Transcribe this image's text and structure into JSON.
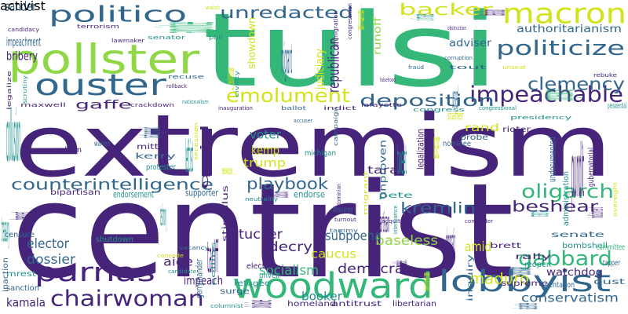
{
  "palette": {
    "p": "#46247a",
    "b": "#31668d",
    "t": "#21918c",
    "g": "#35b779",
    "l": "#8fd744",
    "y": "#d2e21b"
  },
  "words": [
    {
      "text": "extremism",
      "color": "p",
      "dir": "h"
    },
    {
      "text": "centrist",
      "color": "p",
      "dir": "h"
    },
    {
      "text": "tulsi",
      "color": "g",
      "dir": "h"
    },
    {
      "text": "pollster",
      "color": "l",
      "dir": "h"
    },
    {
      "text": "macron",
      "color": "y",
      "dir": "h"
    },
    {
      "text": "politico",
      "color": "b",
      "dir": "h"
    },
    {
      "text": "ouster",
      "color": "b",
      "dir": "h"
    },
    {
      "text": "woodward",
      "color": "g",
      "dir": "h"
    },
    {
      "text": "parnas",
      "color": "p",
      "dir": "h"
    },
    {
      "text": "lobbyist",
      "color": "b",
      "dir": "h"
    },
    {
      "text": "chairwoman",
      "color": "p",
      "dir": "h"
    },
    {
      "text": "impeachable",
      "color": "p",
      "dir": "h"
    },
    {
      "text": "politicize",
      "color": "b",
      "dir": "h"
    },
    {
      "text": "emolument",
      "color": "y",
      "dir": "h"
    },
    {
      "text": "deposition",
      "color": "b",
      "dir": "h"
    },
    {
      "text": "unredacted",
      "color": "b",
      "dir": "h"
    },
    {
      "text": "backer",
      "color": "y",
      "dir": "h"
    },
    {
      "text": "clemency",
      "color": "b",
      "dir": "h"
    },
    {
      "text": "counterintelligence",
      "color": "b",
      "dir": "h"
    },
    {
      "text": "oligarch",
      "color": "g",
      "dir": "h"
    },
    {
      "text": "gabbard",
      "color": "g",
      "dir": "h"
    },
    {
      "text": "beshear",
      "color": "p",
      "dir": "h"
    },
    {
      "text": "kremlin",
      "color": "b",
      "dir": "h"
    },
    {
      "text": "playbook",
      "color": "b",
      "dir": "h"
    },
    {
      "text": "maduro",
      "color": "y",
      "dir": "h"
    },
    {
      "text": "conservatism",
      "color": "b",
      "dir": "h"
    },
    {
      "text": "socialism",
      "color": "g",
      "dir": "h"
    },
    {
      "text": "democrat",
      "color": "p",
      "dir": "h"
    },
    {
      "text": "caucus",
      "color": "y",
      "dir": "h"
    },
    {
      "text": "booker",
      "color": "t",
      "dir": "h"
    },
    {
      "text": "baseless",
      "color": "l",
      "dir": "h"
    },
    {
      "text": "subpoena",
      "color": "b",
      "dir": "h"
    },
    {
      "text": "decry",
      "color": "p",
      "dir": "h"
    },
    {
      "text": "tucker",
      "color": "p",
      "dir": "h"
    },
    {
      "text": "elector",
      "color": "b",
      "dir": "h"
    },
    {
      "text": "dossier",
      "color": "b",
      "dir": "h"
    },
    {
      "text": "kamala",
      "color": "p",
      "dir": "h"
    },
    {
      "text": "impeach",
      "color": "p",
      "dir": "h"
    },
    {
      "text": "aide",
      "color": "p",
      "dir": "h"
    },
    {
      "text": "amid",
      "color": "y",
      "dir": "h"
    },
    {
      "text": "watchdog",
      "color": "p",
      "dir": "h"
    },
    {
      "text": "authoritarianism",
      "color": "b",
      "dir": "h"
    },
    {
      "text": "adviser",
      "color": "b",
      "dir": "h"
    },
    {
      "text": "republican",
      "color": "p",
      "dir": "v"
    },
    {
      "text": "judiciary",
      "color": "y",
      "dir": "v"
    },
    {
      "text": "runoff",
      "color": "l",
      "dir": "v"
    },
    {
      "text": "migrant",
      "color": "b",
      "dir": "h"
    },
    {
      "text": "showdown",
      "color": "y",
      "dir": "v"
    },
    {
      "text": "appointee",
      "color": "g",
      "dir": "v"
    },
    {
      "text": "impeachment",
      "color": "b",
      "dir": "h"
    },
    {
      "text": "sander",
      "color": "b",
      "dir": "h"
    },
    {
      "text": "bribery",
      "color": "p",
      "dir": "h"
    },
    {
      "text": "gaffe",
      "color": "p",
      "dir": "h"
    },
    {
      "text": "collusion",
      "color": "t",
      "dir": "h"
    },
    {
      "text": "battleground",
      "color": "b",
      "dir": "v"
    },
    {
      "text": "voter",
      "color": "t",
      "dir": "h"
    },
    {
      "text": "kemp",
      "color": "y",
      "dir": "h"
    },
    {
      "text": "trump",
      "color": "y",
      "dir": "h"
    },
    {
      "text": "staffer",
      "color": "y",
      "dir": "h"
    },
    {
      "text": "rand",
      "color": "y",
      "dir": "h"
    },
    {
      "text": "pundit",
      "color": "p",
      "dir": "h"
    },
    {
      "text": "indictment",
      "color": "p",
      "dir": "v"
    },
    {
      "text": "tara",
      "color": "p",
      "dir": "h"
    },
    {
      "text": "partisan",
      "color": "p",
      "dir": "h"
    },
    {
      "text": "quid",
      "color": "p",
      "dir": "v"
    },
    {
      "text": "congresswoman",
      "color": "g",
      "dir": "v"
    },
    {
      "text": "bipartisan",
      "color": "p",
      "dir": "h"
    },
    {
      "text": "endorsement",
      "color": "t",
      "dir": "h"
    },
    {
      "text": "supporter",
      "color": "b",
      "dir": "h"
    },
    {
      "text": "endorse",
      "color": "t",
      "dir": "h"
    },
    {
      "text": "insurer",
      "color": "b",
      "dir": "h"
    },
    {
      "text": "pete",
      "color": "t",
      "dir": "h"
    },
    {
      "text": "shutdown",
      "color": "t",
      "dir": "h"
    },
    {
      "text": "refugee",
      "color": "t",
      "dir": "h"
    },
    {
      "text": "election",
      "color": "p",
      "dir": "h"
    },
    {
      "text": "unveil",
      "color": "t",
      "dir": "h"
    },
    {
      "text": "surge",
      "color": "b",
      "dir": "h"
    },
    {
      "text": "tariff",
      "color": "p",
      "dir": "h"
    },
    {
      "text": "gerrymander",
      "color": "b",
      "dir": "v"
    },
    {
      "text": "divisive",
      "color": "p",
      "dir": "v"
    },
    {
      "text": "homeland",
      "color": "p",
      "dir": "h"
    },
    {
      "text": "antitrust",
      "color": "p",
      "dir": "h"
    },
    {
      "text": "libertarian",
      "color": "p",
      "dir": "h"
    },
    {
      "text": "democratic",
      "color": "p",
      "dir": "h"
    },
    {
      "text": "inquiry",
      "color": "b",
      "dir": "v"
    },
    {
      "text": "spokeswoman",
      "color": "b",
      "dir": "v"
    },
    {
      "text": "supreme",
      "color": "p",
      "dir": "h"
    },
    {
      "text": "pentagon",
      "color": "b",
      "dir": "h"
    },
    {
      "text": "rally",
      "color": "p",
      "dir": "h"
    },
    {
      "text": "reopen",
      "color": "t",
      "dir": "h"
    },
    {
      "text": "brett",
      "color": "p",
      "dir": "h"
    },
    {
      "text": "bombshell",
      "color": "t",
      "dir": "h"
    },
    {
      "text": "senate",
      "color": "b",
      "dir": "h"
    },
    {
      "text": "committee",
      "color": "g",
      "dir": "h"
    },
    {
      "text": "tapper",
      "color": "b",
      "dir": "h"
    },
    {
      "text": "oust",
      "color": "b",
      "dir": "h"
    },
    {
      "text": "mrest",
      "color": "t",
      "dir": "h"
    },
    {
      "text": "sanction",
      "color": "b",
      "dir": "h"
    },
    {
      "text": "treasury",
      "color": "t",
      "dir": "h"
    },
    {
      "text": "inaction",
      "color": "b",
      "dir": "v"
    },
    {
      "text": "bennet",
      "color": "p",
      "dir": "v"
    },
    {
      "text": "censure",
      "color": "b",
      "dir": "h"
    },
    {
      "text": "graham",
      "color": "p",
      "dir": "h"
    },
    {
      "text": "warren",
      "color": "b",
      "dir": "h"
    },
    {
      "text": "mitt",
      "color": "p",
      "dir": "h"
    },
    {
      "text": "kerry",
      "color": "b",
      "dir": "h"
    },
    {
      "text": "protester",
      "color": "t",
      "dir": "h"
    },
    {
      "text": "leftist",
      "color": "t",
      "dir": "h"
    },
    {
      "text": "stimulus",
      "color": "p",
      "dir": "v"
    },
    {
      "text": "demonstrator",
      "color": "p",
      "dir": "v"
    },
    {
      "text": "neutrality",
      "color": "t",
      "dir": "h"
    },
    {
      "text": "michigan",
      "color": "t",
      "dir": "h"
    },
    {
      "text": "ballot",
      "color": "b",
      "dir": "h"
    },
    {
      "text": "indict",
      "color": "p",
      "dir": "h"
    },
    {
      "text": "lafayette",
      "color": "p",
      "dir": "h"
    },
    {
      "text": "inauguration",
      "color": "p",
      "dir": "h"
    },
    {
      "text": "congress",
      "color": "t",
      "dir": "h"
    },
    {
      "text": "congressional",
      "color": "t",
      "dir": "h"
    },
    {
      "text": "presidency",
      "color": "t",
      "dir": "h"
    },
    {
      "text": "presidential",
      "color": "t",
      "dir": "h"
    },
    {
      "text": "probe",
      "color": "b",
      "dir": "h"
    },
    {
      "text": "nominee",
      "color": "b",
      "dir": "h"
    },
    {
      "text": "rioter",
      "color": "p",
      "dir": "h"
    },
    {
      "text": "accuser",
      "color": "b",
      "dir": "h"
    },
    {
      "text": "tweet",
      "color": "t",
      "dir": "h"
    },
    {
      "text": "legalization",
      "color": "p",
      "dir": "v"
    },
    {
      "text": "unproven",
      "color": "b",
      "dir": "v"
    },
    {
      "text": "undocumented",
      "color": "b",
      "dir": "v"
    },
    {
      "text": "administration",
      "color": "t",
      "dir": "v"
    },
    {
      "text": "gubernatorial",
      "color": "p",
      "dir": "v"
    },
    {
      "text": "transcript",
      "color": "t",
      "dir": "v"
    },
    {
      "text": "contender",
      "color": "p",
      "dir": "h"
    },
    {
      "text": "acquittal",
      "color": "p",
      "dir": "h"
    },
    {
      "text": "turnout",
      "color": "p",
      "dir": "h"
    },
    {
      "text": "tammy",
      "color": "b",
      "dir": "h"
    },
    {
      "text": "testimony",
      "color": "t",
      "dir": "h"
    },
    {
      "text": "peddle",
      "color": "p",
      "dir": "v"
    },
    {
      "text": "nancy",
      "color": "y",
      "dir": "h"
    },
    {
      "text": "absentee",
      "color": "b",
      "dir": "v"
    },
    {
      "text": "columnist",
      "color": "t",
      "dir": "h"
    },
    {
      "text": "candidate",
      "color": "t",
      "dir": "h"
    },
    {
      "text": "vacancy",
      "color": "b",
      "dir": "h"
    },
    {
      "text": "concede",
      "color": "y",
      "dir": "h"
    },
    {
      "text": "senator",
      "color": "t",
      "dir": "h"
    },
    {
      "text": "lawmaker",
      "color": "p",
      "dir": "h"
    },
    {
      "text": "terrorism",
      "color": "p",
      "dir": "h"
    },
    {
      "text": "candidacy",
      "color": "p",
      "dir": "h"
    },
    {
      "text": "maxwell",
      "color": "p",
      "dir": "h"
    },
    {
      "text": "crackdown",
      "color": "p",
      "dir": "h"
    },
    {
      "text": "nationalism",
      "color": "t",
      "dir": "h"
    },
    {
      "text": "recuse",
      "color": "b",
      "dir": "h"
    },
    {
      "text": "rollback",
      "color": "p",
      "dir": "h"
    },
    {
      "text": "poll",
      "color": "t",
      "dir": "h"
    },
    {
      "text": "walsh",
      "color": "y",
      "dir": "h"
    },
    {
      "text": "vang",
      "color": "y",
      "dir": "h"
    },
    {
      "text": "civility",
      "color": "t",
      "dir": "v"
    },
    {
      "text": "climate",
      "color": "t",
      "dir": "v"
    },
    {
      "text": "obstruction",
      "color": "p",
      "dir": "h"
    },
    {
      "text": "poise",
      "color": "y",
      "dir": "h"
    },
    {
      "text": "congressman",
      "color": "p",
      "dir": "v"
    },
    {
      "text": "immigration",
      "color": "p",
      "dir": "v"
    },
    {
      "text": "defamation",
      "color": "p",
      "dir": "v"
    },
    {
      "text": "falsehood",
      "color": "p",
      "dir": "h"
    },
    {
      "text": "fraud",
      "color": "b",
      "dir": "h"
    },
    {
      "text": "tout",
      "color": "b",
      "dir": "h"
    },
    {
      "text": "corruption",
      "color": "b",
      "dir": "h"
    },
    {
      "text": "unseat",
      "color": "y",
      "dir": "h"
    },
    {
      "text": "rebuke",
      "color": "p",
      "dir": "h"
    },
    {
      "text": "unseal",
      "color": "b",
      "dir": "h"
    },
    {
      "text": "legalize",
      "color": "p",
      "dir": "v"
    },
    {
      "text": "scrutiny",
      "color": "t",
      "dir": "v"
    },
    {
      "text": "migrant",
      "color": "y",
      "dir": "v"
    },
    {
      "text": "campaign",
      "color": "b",
      "dir": "v"
    },
    {
      "text": "secession",
      "color": "y",
      "dir": "v"
    },
    {
      "text": "governor",
      "color": "y",
      "dir": "v"
    },
    {
      "text": "insider",
      "color": "y",
      "dir": "h"
    },
    {
      "text": "interference",
      "color": "t",
      "dir": "v"
    },
    {
      "text": "dominion",
      "color": "p",
      "dir": "v"
    },
    {
      "text": "oversight",
      "color": "y",
      "dir": "v"
    },
    {
      "text": "collins",
      "color": "t",
      "dir": "v"
    },
    {
      "text": "activist",
      "color": "y",
      "dir": "v"
    }
  ]
}
